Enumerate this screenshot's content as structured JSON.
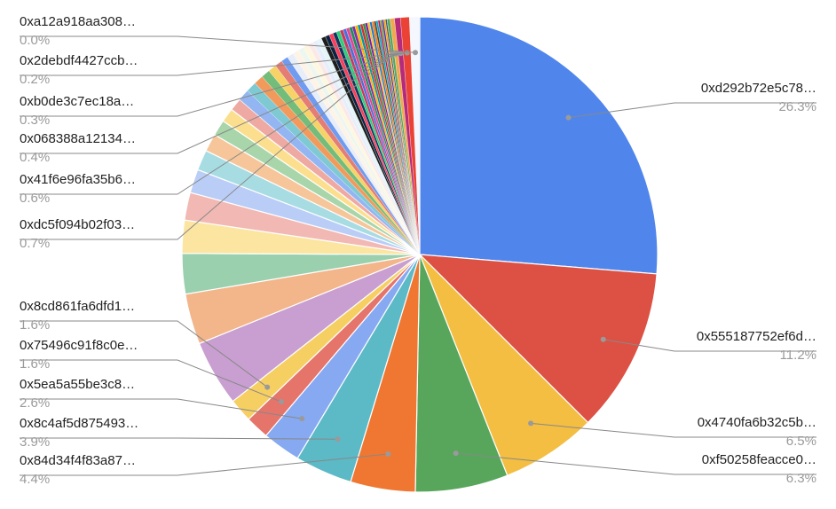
{
  "chart_data": {
    "type": "pie",
    "title": "",
    "slices": [
      {
        "label": "0xd292b72e5c78…",
        "percent": "26.3%",
        "value": 26.3,
        "color": "#5086ec"
      },
      {
        "label": "0x555187752ef6d…",
        "percent": "11.2%",
        "value": 11.2,
        "color": "#dc5143"
      },
      {
        "label": "0x4740fa6b32c5b…",
        "percent": "6.5%",
        "value": 6.5,
        "color": "#f3be42"
      },
      {
        "label": "0xf50258feacce0…",
        "percent": "6.3%",
        "value": 6.3,
        "color": "#58a65c"
      },
      {
        "label": "0x84d34f4f83a87…",
        "percent": "4.4%",
        "value": 4.4,
        "color": "#ef7732"
      },
      {
        "label": "0x8c4af5d875493…",
        "percent": "3.9%",
        "value": 3.9,
        "color": "#5cb9c6"
      },
      {
        "label": "0x5ea5a55be3c8…",
        "percent": "2.6%",
        "value": 2.6,
        "color": "#86a9f2"
      },
      {
        "label": "0x75496c91f8c0e…",
        "percent": "1.6%",
        "value": 1.6,
        "color": "#e5746b"
      },
      {
        "label": "0x8cd861fa6dfd1…",
        "percent": "1.6%",
        "value": 1.6,
        "color": "#f6cf63"
      },
      {
        "label": "0xdc5f094b02f03…",
        "percent": "0.7%",
        "value": 0.7,
        "color": "#f4f8fe"
      },
      {
        "label": "0x41f6e96fa35b6…",
        "percent": "0.6%",
        "value": 0.6,
        "color": "#ea4335"
      },
      {
        "label": "0x068388a12134…",
        "percent": "0.4%",
        "value": 0.4,
        "color": "#b52b7a"
      },
      {
        "label": "0xb0de3c7ec18a…",
        "percent": "0.3%",
        "value": 0.3,
        "color": "#f1a94e"
      },
      {
        "label": "0x2debdf4427ccb…",
        "percent": "0.2%",
        "value": 0.2,
        "color": "#55a860"
      },
      {
        "label": "0xa12a918aa308…",
        "percent": "0.0%",
        "value": 0.0,
        "color": "#8e63c9"
      }
    ],
    "other_slice_colors": [
      "#c89fd0",
      "#f3b58a",
      "#9ad0ad",
      "#fbe5a1",
      "#f2b8b3",
      "#b9cdf6",
      "#a7dce3",
      "#f6c59a",
      "#a8d5a9",
      "#fcdf8e",
      "#efa9a3",
      "#93b6f3",
      "#7fc9d2",
      "#f29a5c",
      "#74bc7a",
      "#f6d267",
      "#e47d73",
      "#6f9bf0",
      "#e8eef9",
      "#fdf3e7",
      "#eef7ef",
      "#fef7e0",
      "#fbe9e8",
      "#e6eefc",
      "#e5f4f6",
      "#1e1e1e",
      "#0c2340",
      "#ff3d5a",
      "#14365e",
      "#2ad07a",
      "#c9375f",
      "#4a6fd8",
      "#e84393",
      "#1c8e5a",
      "#7d2ea8",
      "#ffb300",
      "#0097a7",
      "#d32f2f",
      "#388e3c",
      "#7b1fa2",
      "#fbc02d",
      "#1976d2",
      "#f57c00",
      "#5d4037",
      "#00acc1",
      "#c2185b",
      "#689f38",
      "#512da8",
      "#ffa000",
      "#455a64"
    ]
  }
}
